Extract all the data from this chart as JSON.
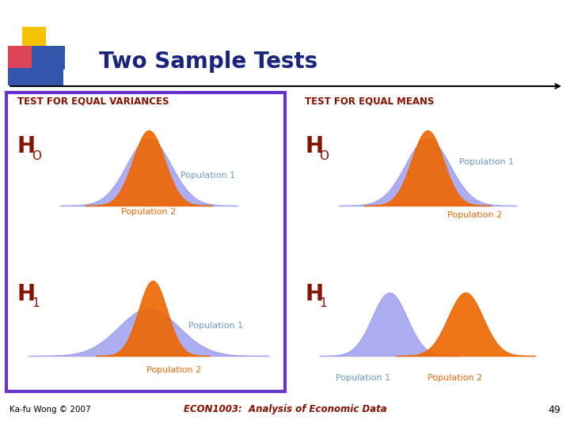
{
  "title": "Two Sample Tests",
  "title_color": "#1a237e",
  "bg_color": "#ffffff",
  "box_left_color": "#6633cc",
  "bell_blue": "#9999ee",
  "bell_orange": "#ee6600",
  "label_blue": "#6699cc",
  "label_orange": "#ee6600",
  "label_red": "#881100",
  "section1_title": "TEST FOR EQUAL VARIANCES",
  "section2_title": "TEST FOR EQUAL MEANS",
  "footer_left": "Ka-fu Wong © 2007",
  "footer_center": "ECON1003:  Analysis of Economic Data",
  "footer_page": "49",
  "sq_yellow": "#f5c300",
  "sq_red": "#dd4455",
  "sq_blue": "#3355aa"
}
